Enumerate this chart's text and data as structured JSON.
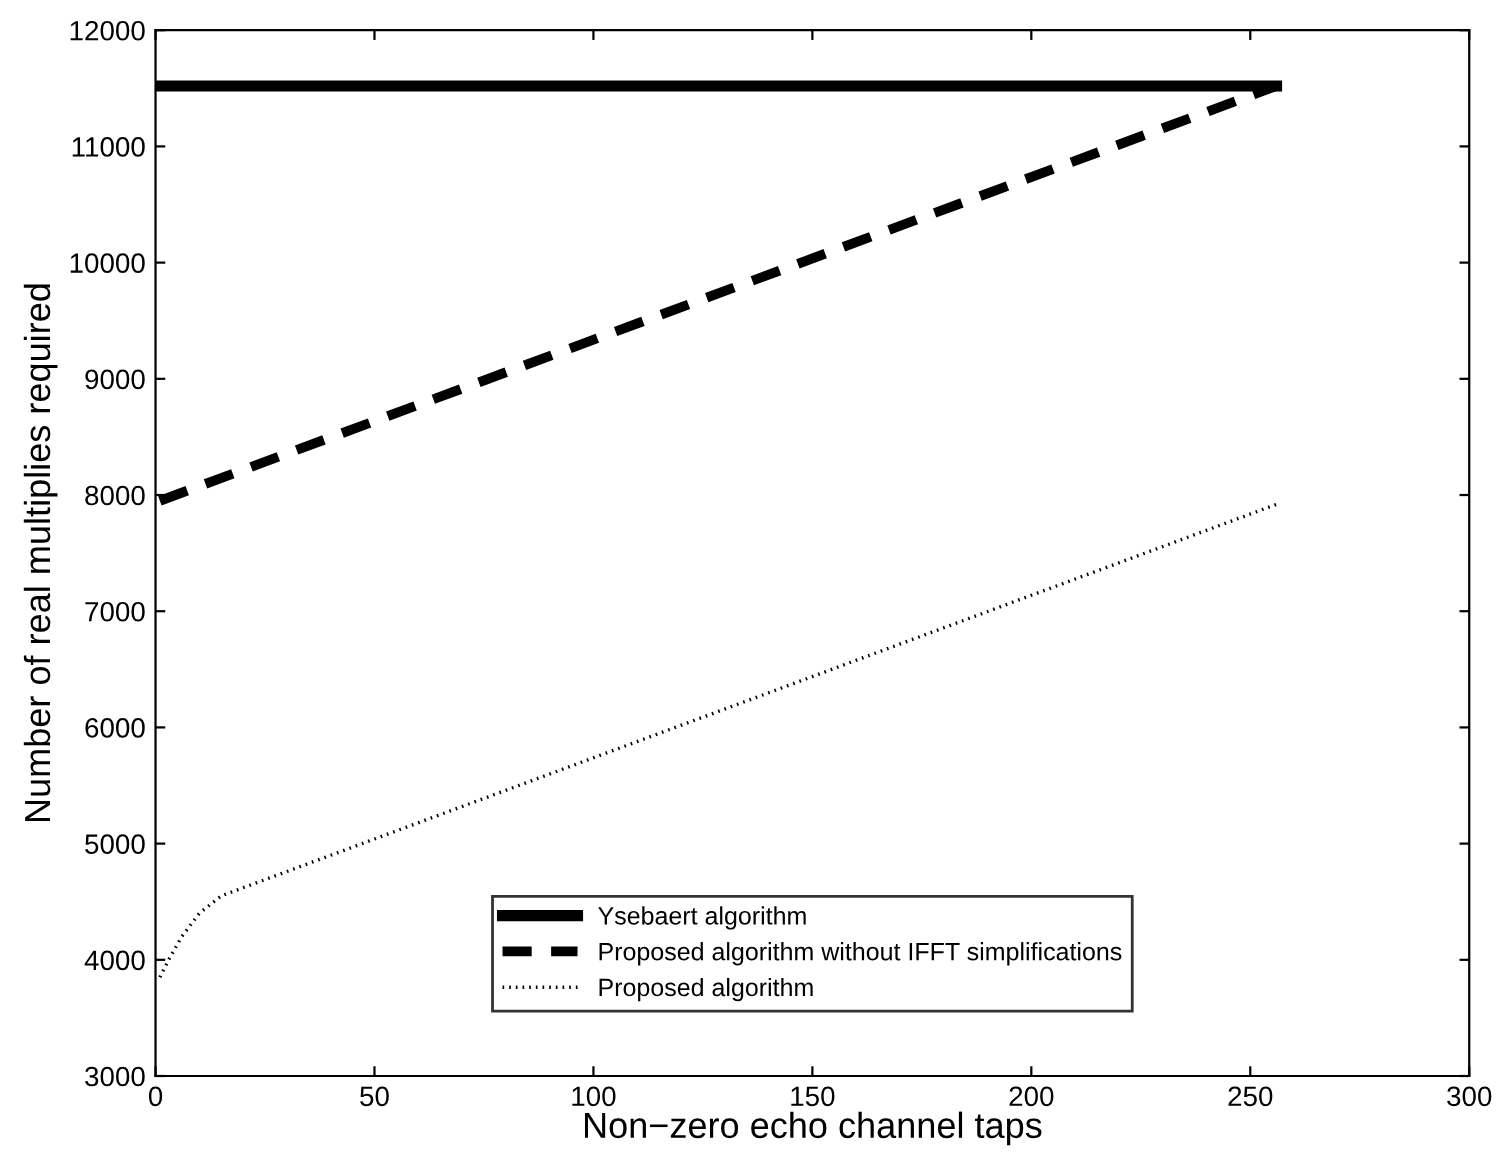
{
  "chart_data": {
    "type": "line",
    "xlabel": "Non−zero echo channel taps",
    "ylabel": "Number of real multiplies required",
    "xlim": [
      0,
      300
    ],
    "xticks": [
      0,
      50,
      100,
      150,
      200,
      250,
      300
    ],
    "ylim": [
      3000,
      12000
    ],
    "yticks": [
      3000,
      4000,
      5000,
      6000,
      7000,
      8000,
      9000,
      10000,
      11000,
      12000
    ],
    "grid": false,
    "legend": "bottom",
    "series": [
      {
        "name": "Ysebaert algorithm",
        "color": "#000000",
        "line_style": "solid",
        "x": [
          1,
          256
        ],
        "values": [
          11520,
          11520
        ]
      },
      {
        "name": "Proposed algorithm without IFFT simplifications",
        "color": "#000000",
        "line_style": "dashed",
        "x": [
          1,
          256
        ],
        "values": [
          7950,
          11520
        ]
      },
      {
        "name": "Proposed algorithm",
        "color": "#000000",
        "line_style": "dotted",
        "x": [
          1,
          3,
          6,
          10,
          15,
          20,
          256
        ],
        "values": [
          3850,
          4000,
          4200,
          4400,
          4550,
          4620,
          7920
        ]
      }
    ]
  }
}
